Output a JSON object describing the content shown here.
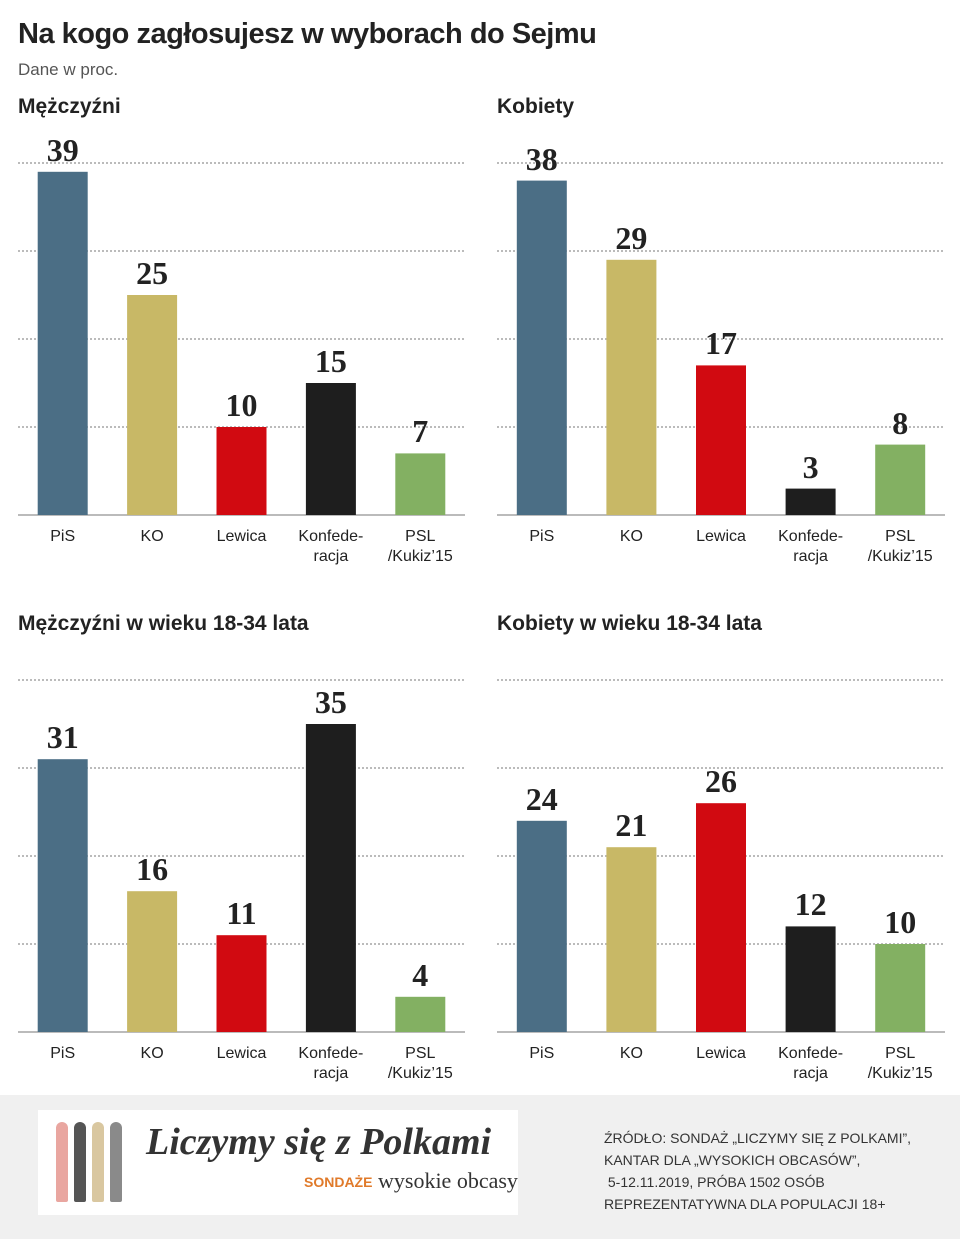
{
  "title": "Na kogo zagłosujesz w wyborach do Sejmu",
  "subtitle": "Dane w proc.",
  "chart_data": [
    {
      "type": "bar",
      "title": "Mężczyźni",
      "categories": [
        "PiS",
        "KO",
        "Lewica",
        "Konfede-\nracja",
        "PSL\n/Kukiz’15"
      ],
      "values": [
        39,
        25,
        10,
        15,
        7
      ],
      "colors": [
        "#4b6e85",
        "#c8b866",
        "#d10a11",
        "#1e1e1e",
        "#83b062"
      ],
      "ylim": [
        0,
        40
      ],
      "yticks": [
        0,
        10,
        20,
        30,
        40
      ],
      "grid": true
    },
    {
      "type": "bar",
      "title": "Kobiety",
      "categories": [
        "PiS",
        "KO",
        "Lewica",
        "Konfede-\nracja",
        "PSL\n/Kukiz’15"
      ],
      "values": [
        38,
        29,
        17,
        3,
        8
      ],
      "colors": [
        "#4b6e85",
        "#c8b866",
        "#d10a11",
        "#1e1e1e",
        "#83b062"
      ],
      "ylim": [
        0,
        40
      ],
      "yticks": [
        0,
        10,
        20,
        30,
        40
      ],
      "grid": true
    },
    {
      "type": "bar",
      "title": "Mężczyźni w wieku 18-34 lata",
      "categories": [
        "PiS",
        "KO",
        "Lewica",
        "Konfede-\nracja",
        "PSL\n/Kukiz’15"
      ],
      "values": [
        31,
        16,
        11,
        35,
        4
      ],
      "colors": [
        "#4b6e85",
        "#c8b866",
        "#d10a11",
        "#1e1e1e",
        "#83b062"
      ],
      "ylim": [
        0,
        40
      ],
      "yticks": [
        0,
        10,
        20,
        30,
        40
      ],
      "grid": true
    },
    {
      "type": "bar",
      "title": "Kobiety w wieku 18-34 lata",
      "categories": [
        "PiS",
        "KO",
        "Lewica",
        "Konfede-\nracja",
        "PSL\n/Kukiz’15"
      ],
      "values": [
        24,
        21,
        26,
        12,
        10
      ],
      "colors": [
        "#4b6e85",
        "#c8b866",
        "#d10a11",
        "#1e1e1e",
        "#83b062"
      ],
      "ylim": [
        0,
        40
      ],
      "yticks": [
        0,
        10,
        20,
        30,
        40
      ],
      "grid": true
    }
  ],
  "footer": {
    "logo": "Liczymy się z Polkami",
    "logo_tag": "SONDAŻE",
    "brand": "wysokie obcasy",
    "source": [
      "ŹRÓDŁO: SONDAŻ „LICZYMY SIĘ Z POLKAMI”,",
      "KANTAR DLA „WYSOKICH OBCASÓW”,",
      " 5-12.11.2019, PRÓBA 1502 OSÓB",
      "REPREZENTATYWNA DLA POPULACJI 18+"
    ]
  }
}
